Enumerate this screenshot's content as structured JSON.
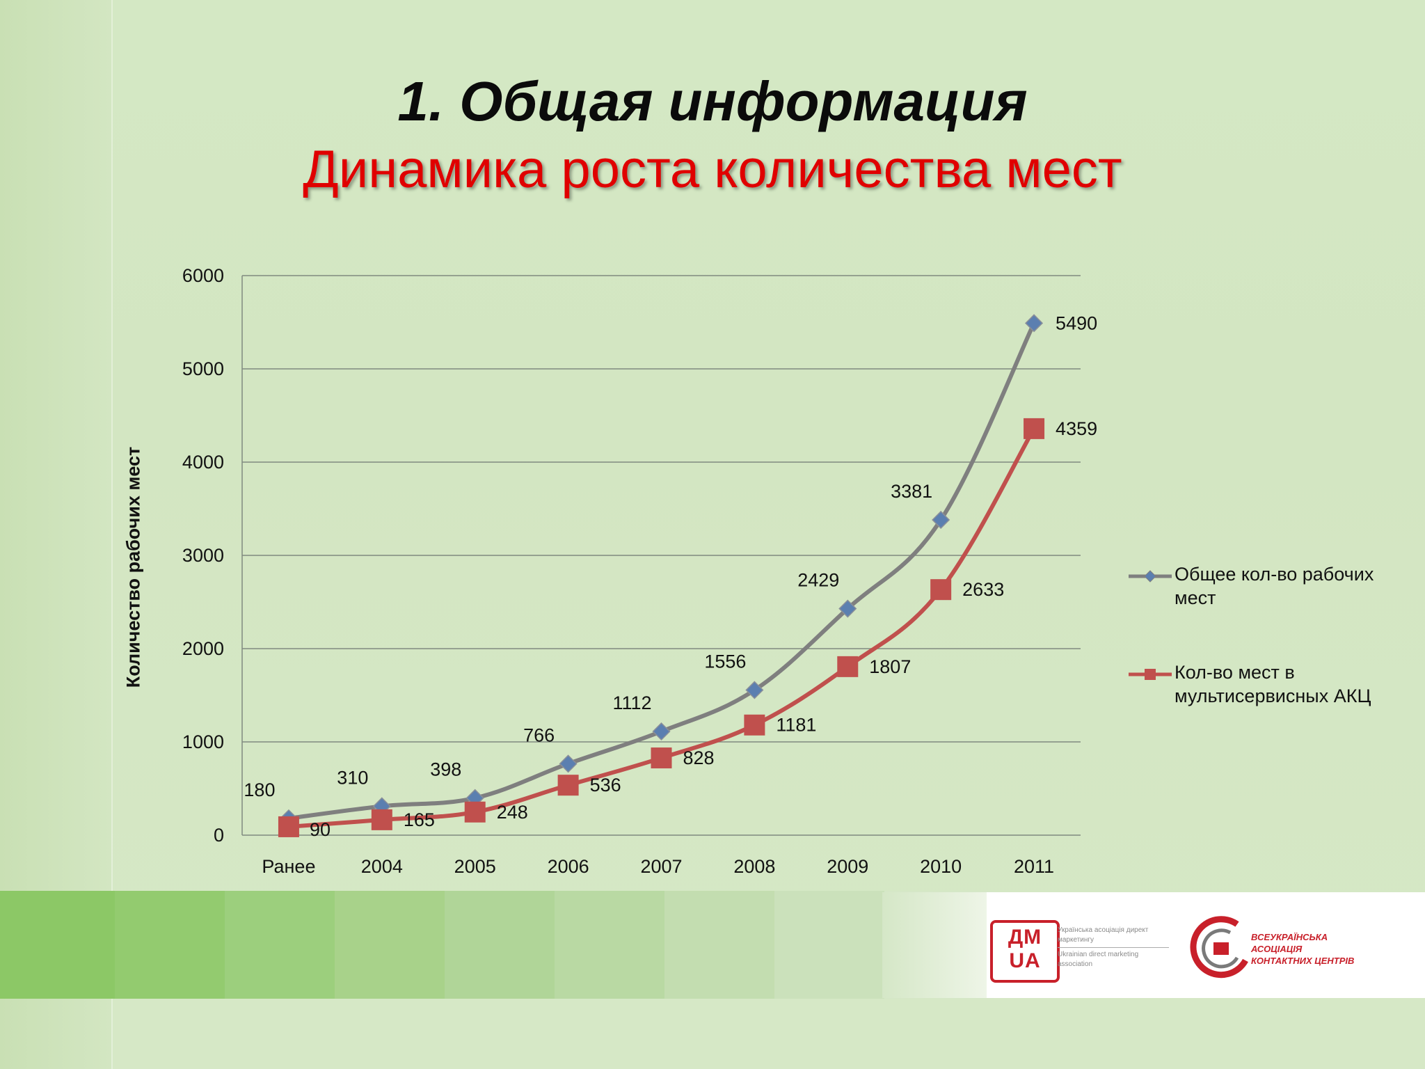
{
  "slide": {
    "title": "1. Общая информация",
    "subtitle": "Динамика роста количества мест"
  },
  "chart_data": {
    "type": "line",
    "categories": [
      "Ранее",
      "2004",
      "2005",
      "2006",
      "2007",
      "2008",
      "2009",
      "2010",
      "2011"
    ],
    "ylabel": "Количество рабочих мест",
    "ylim": [
      0,
      6000
    ],
    "yticks": [
      0,
      1000,
      2000,
      3000,
      4000,
      5000,
      6000
    ],
    "grid": true,
    "legend_position": "right",
    "series": [
      {
        "name": "Общее кол-во рабочих мест",
        "values": [
          180,
          310,
          398,
          766,
          1112,
          1556,
          2429,
          3381,
          5490
        ],
        "color": "#7f7f7f",
        "marker": "diamond",
        "marker_color": "#5b7fb0",
        "label_position": "above-left"
      },
      {
        "name": "Кол-во мест в мультисервисных АКЦ",
        "values": [
          90,
          165,
          248,
          536,
          828,
          1181,
          1807,
          2633,
          4359
        ],
        "color": "#c0504d",
        "marker": "square",
        "marker_color": "#c0504d",
        "label_position": "right"
      }
    ]
  },
  "legend": {
    "items": [
      {
        "line1": "Общее кол-во рабочих",
        "line2": "мест"
      },
      {
        "line1": "Кол-во мест в",
        "line2": "мультисервисных АКЦ"
      }
    ]
  },
  "logos": {
    "dm_mark": "ДМ UA",
    "dm_desc_ua": "Українська асоціація директ маркетингу",
    "dm_desc_en": "Ukrainian direct marketing association",
    "kc_text": "ВСЕУКРАЇНСЬКА АСОЦІАЦІЯ КОНТАКТНИХ ЦЕНТРІВ"
  },
  "colors": {
    "background": "#d3e6c2",
    "title_red": "#e00000",
    "series_gray": "#7f7f7f",
    "series_red": "#c0504d"
  }
}
